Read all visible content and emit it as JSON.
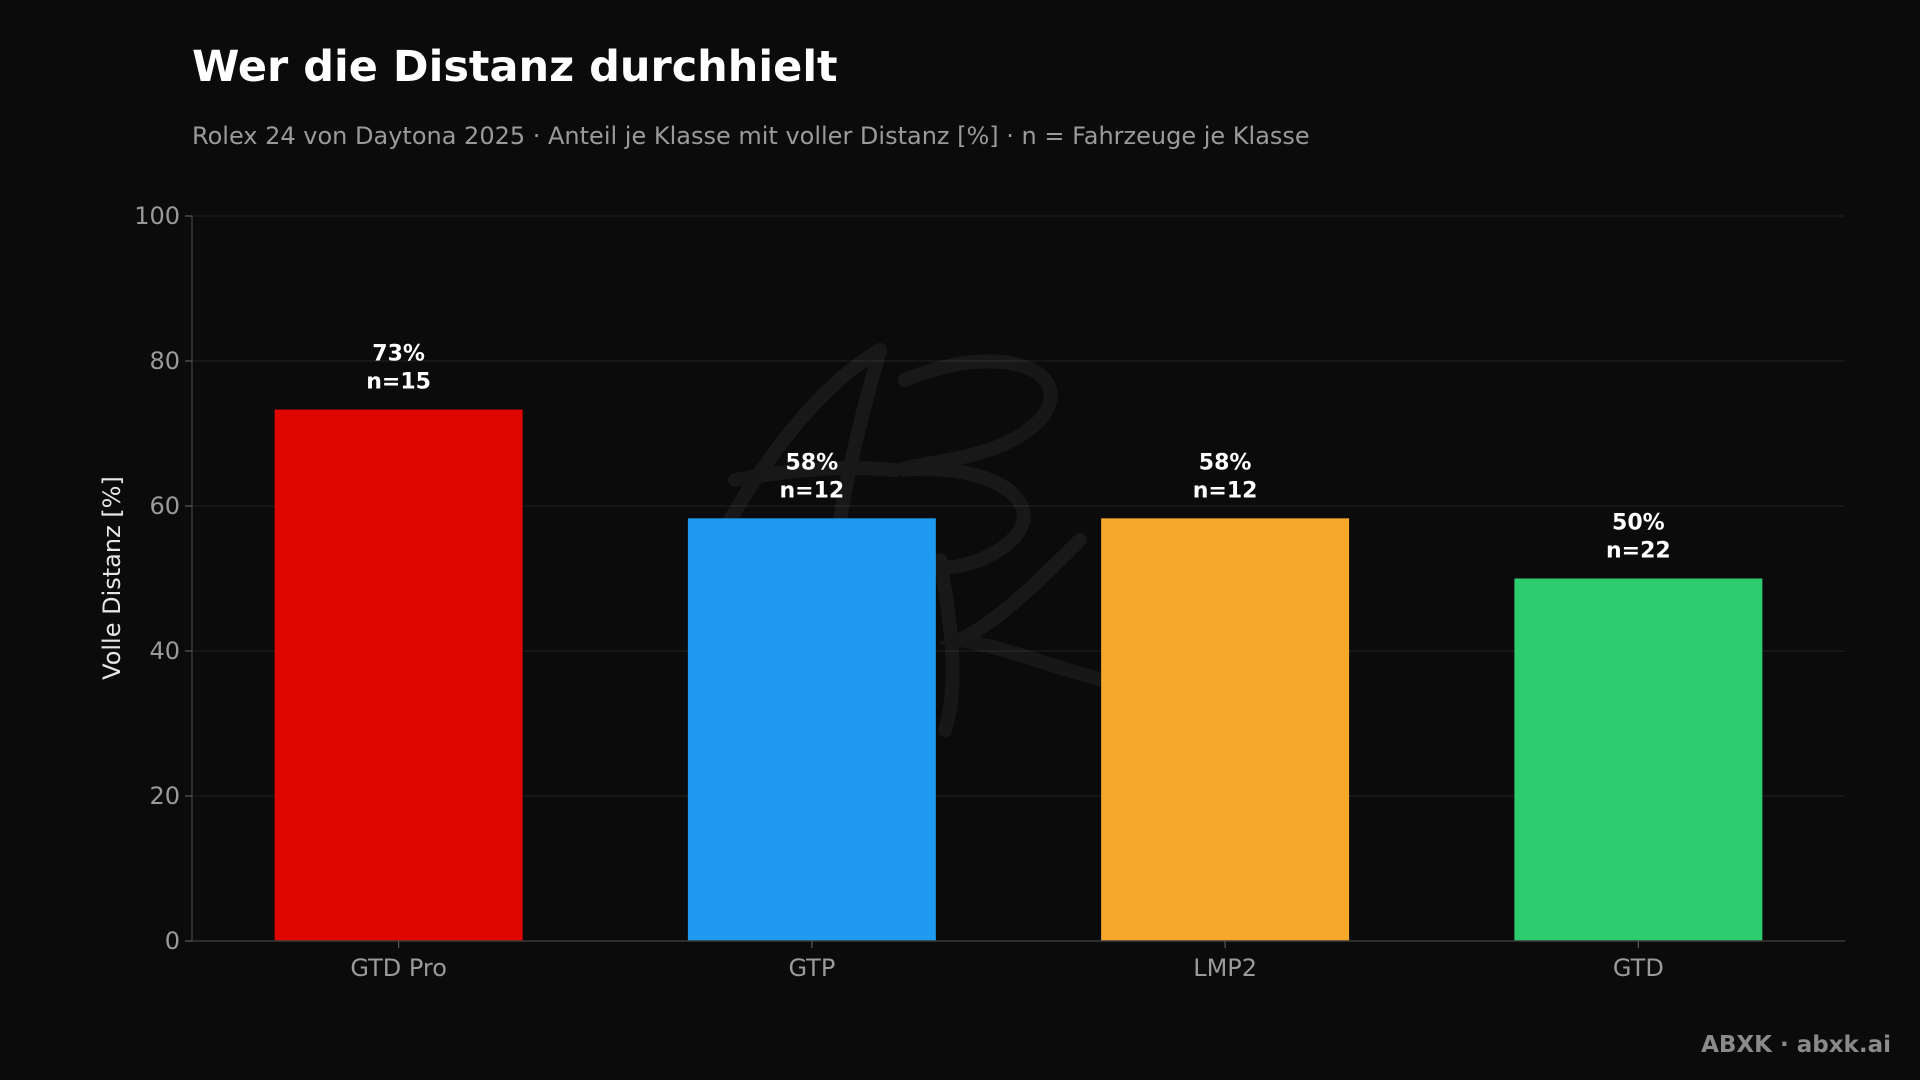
{
  "chart_data": {
    "type": "bar",
    "title": "Wer die Distanz durchhielt",
    "subtitle": "Rolex 24 von Daytona 2025 · Anteil je Klasse mit voller Distanz [%] · n = Fahrzeuge je Klasse",
    "xlabel": "",
    "ylabel": "Volle Distanz [%]",
    "ylim": [
      0,
      100
    ],
    "yticks": [
      "0",
      "20",
      "40",
      "60",
      "80",
      "100"
    ],
    "grid": true,
    "categories": [
      "GTD Pro",
      "GTP",
      "LMP2",
      "GTD"
    ],
    "values": [
      73.3,
      58.3,
      58.3,
      50.0
    ],
    "value_labels": [
      "73%",
      "58%",
      "58%",
      "50%"
    ],
    "n_labels": [
      "n=15",
      "n=12",
      "n=12",
      "n=22"
    ],
    "colors": [
      "#e00600",
      "#1e9bf0",
      "#f5a82a",
      "#2ecc71"
    ]
  },
  "watermark": "ABXK",
  "footer": {
    "credit": "ABXK · abxk.ai"
  }
}
